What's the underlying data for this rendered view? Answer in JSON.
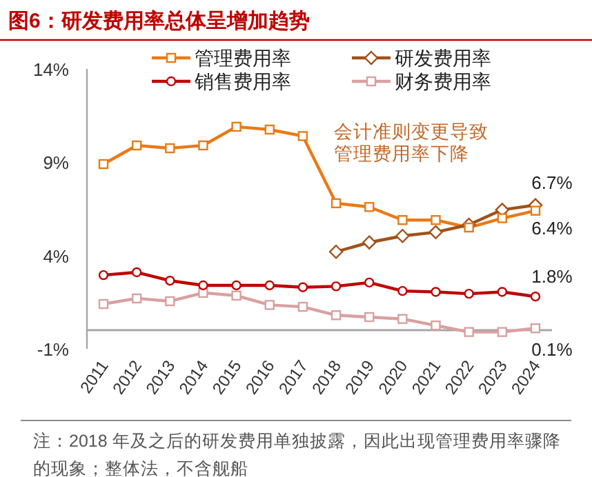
{
  "chart_data": {
    "type": "line",
    "title": "图6：研发费用率总体呈增加趋势",
    "categories": [
      "2011",
      "2012",
      "2013",
      "2014",
      "2015",
      "2016",
      "2017",
      "2018",
      "2019",
      "2020",
      "2021",
      "2022",
      "2023",
      "2024"
    ],
    "series": [
      {
        "name": "管理费用率",
        "color": "#e97a17",
        "marker": "square",
        "values": [
          8.9,
          9.9,
          9.75,
          9.9,
          10.9,
          10.75,
          10.4,
          6.8,
          6.6,
          5.9,
          5.9,
          5.5,
          6.0,
          6.4
        ],
        "value_labels": [
          null,
          null,
          null,
          null,
          null,
          null,
          null,
          null,
          null,
          null,
          null,
          null,
          null,
          "6.4%"
        ]
      },
      {
        "name": "研发费用率",
        "color": "#a0521b",
        "marker": "diamond",
        "values": [
          null,
          null,
          null,
          null,
          null,
          null,
          null,
          4.2,
          4.7,
          5.05,
          5.25,
          5.65,
          6.45,
          6.7
        ],
        "value_labels": [
          null,
          null,
          null,
          null,
          null,
          null,
          null,
          null,
          null,
          null,
          null,
          null,
          null,
          "6.7%"
        ]
      },
      {
        "name": "销售费用率",
        "color": "#c00000",
        "marker": "circle",
        "values": [
          2.95,
          3.1,
          2.65,
          2.4,
          2.4,
          2.4,
          2.3,
          2.35,
          2.55,
          2.1,
          2.05,
          1.95,
          2.05,
          1.8
        ],
        "value_labels": [
          null,
          null,
          null,
          null,
          null,
          null,
          null,
          null,
          null,
          null,
          null,
          null,
          null,
          "1.8%"
        ]
      },
      {
        "name": "财务费用率",
        "color": "#d9a0a0",
        "marker": "square",
        "values": [
          1.4,
          1.7,
          1.55,
          2.0,
          1.85,
          1.35,
          1.25,
          0.8,
          0.7,
          0.6,
          0.25,
          -0.1,
          -0.1,
          0.1
        ],
        "value_labels": [
          null,
          null,
          null,
          null,
          null,
          null,
          null,
          null,
          null,
          null,
          null,
          null,
          null,
          "0.1%"
        ]
      }
    ],
    "ylim": [
      -1,
      14
    ],
    "yticks": [
      {
        "value": 14,
        "label": "14%"
      },
      {
        "value": 9,
        "label": "9%"
      },
      {
        "value": 4,
        "label": "4%"
      },
      {
        "value": -1,
        "label": "-1%"
      }
    ],
    "legend": "top",
    "grid": false,
    "annotations": [
      "会计准则变更导致管理费用率下降",
      "注：2018 年及之后的研发费用单独披露，因此出现管理费用率骤降的现象；整体法，不含舰船"
    ]
  }
}
